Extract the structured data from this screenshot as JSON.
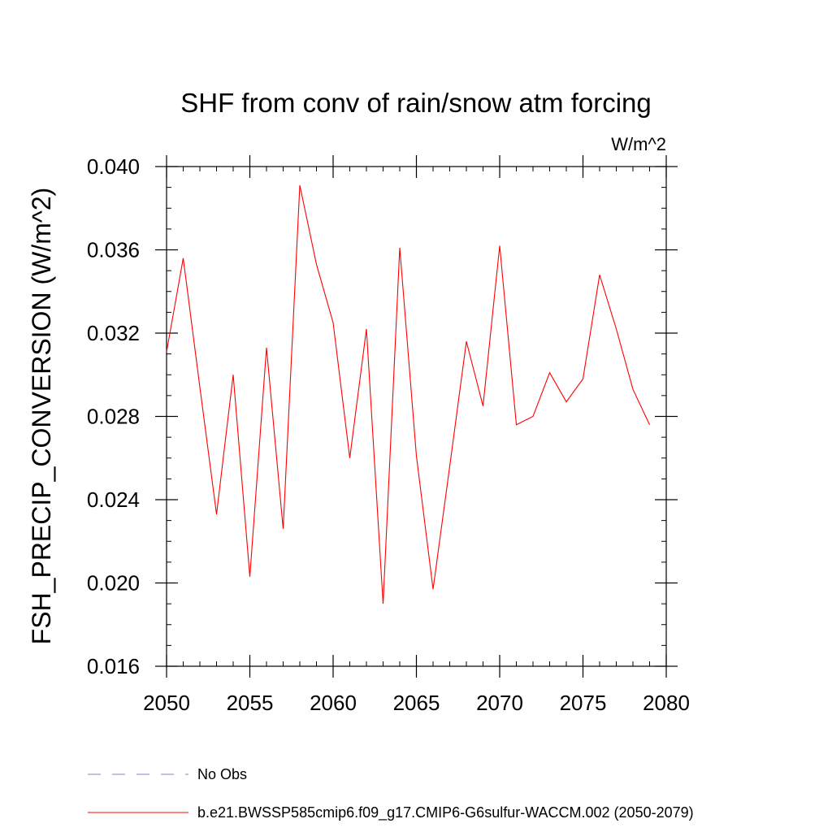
{
  "chart_data": {
    "type": "line",
    "title": "SHF from conv of rain/snow atm forcing",
    "units_label": "W/m^2",
    "ylabel": "FSH_PRECIP_CONVERSION  (W/m^2)",
    "xlabel": "",
    "xlim": [
      2050,
      2080
    ],
    "ylim": [
      0.016,
      0.04
    ],
    "x_ticks": [
      2050,
      2055,
      2060,
      2065,
      2070,
      2075,
      2080
    ],
    "x_tick_labels": [
      "2050",
      "2055",
      "2060",
      "2065",
      "2070",
      "2075",
      "2080"
    ],
    "y_ticks": [
      0.016,
      0.02,
      0.024,
      0.028,
      0.032,
      0.036,
      0.04
    ],
    "y_tick_labels": [
      "0.016",
      "0.020",
      "0.024",
      "0.028",
      "0.032",
      "0.036",
      "0.040"
    ],
    "grid": false,
    "legend_position": "bottom",
    "series": [
      {
        "name": "b.e21.BWSSP585cmip6.f09_g17.CMIP6-G6sulfur-WACCM.002 (2050-2079)",
        "color": "#ff0000",
        "style": "solid",
        "x": [
          2050,
          2051,
          2052,
          2053,
          2054,
          2055,
          2056,
          2057,
          2058,
          2059,
          2060,
          2061,
          2062,
          2063,
          2064,
          2065,
          2066,
          2067,
          2068,
          2069,
          2070,
          2071,
          2072,
          2073,
          2074,
          2075,
          2076,
          2077,
          2078,
          2079
        ],
        "values": [
          0.0311,
          0.0356,
          0.0294,
          0.0233,
          0.03,
          0.0203,
          0.0313,
          0.0226,
          0.0391,
          0.0353,
          0.0325,
          0.026,
          0.0322,
          0.019,
          0.0361,
          0.0261,
          0.0197,
          0.0256,
          0.0316,
          0.0285,
          0.0362,
          0.0276,
          0.028,
          0.0301,
          0.0287,
          0.0298,
          0.0348,
          0.0322,
          0.0293,
          0.0276
        ]
      }
    ],
    "legend": [
      {
        "label": "No Obs",
        "color": "#8080c0",
        "style": "dashed"
      },
      {
        "label": "b.e21.BWSSP585cmip6.f09_g17.CMIP6-G6sulfur-WACCM.002 (2050-2079)",
        "color": "#ff0000",
        "style": "solid"
      }
    ]
  }
}
